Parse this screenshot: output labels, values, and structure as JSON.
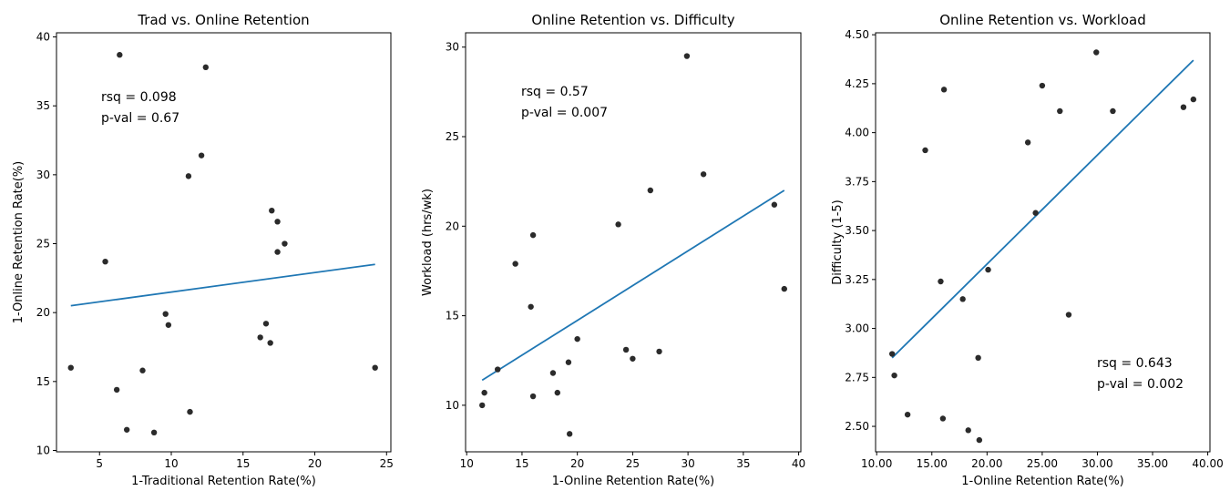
{
  "colors": {
    "points": "#2b2b2b",
    "fit_line": "#1f77b4",
    "background": "#ffffff"
  },
  "chart_data": [
    {
      "type": "scatter",
      "title": "Trad vs. Online Retention",
      "xlabel": "1-Traditional Retention Rate(%)",
      "ylabel": "1-Online Retention Rate(%)",
      "xlim": [
        2.0,
        25.3
      ],
      "ylim": [
        9.9,
        40.3
      ],
      "xticks": [
        5,
        10,
        15,
        20,
        25
      ],
      "yticks": [
        10,
        15,
        20,
        25,
        30,
        35,
        40
      ],
      "tick_format": "int",
      "points": [
        [
          3.0,
          16.0
        ],
        [
          5.4,
          23.7
        ],
        [
          6.2,
          14.4
        ],
        [
          6.4,
          38.7
        ],
        [
          6.9,
          11.5
        ],
        [
          8.0,
          15.8
        ],
        [
          8.8,
          11.3
        ],
        [
          9.6,
          19.9
        ],
        [
          9.8,
          19.1
        ],
        [
          11.2,
          29.9
        ],
        [
          11.3,
          12.8
        ],
        [
          12.1,
          31.4
        ],
        [
          12.4,
          37.8
        ],
        [
          16.2,
          18.2
        ],
        [
          16.6,
          19.2
        ],
        [
          16.9,
          17.8
        ],
        [
          17.0,
          27.4
        ],
        [
          17.4,
          26.6
        ],
        [
          17.4,
          24.4
        ],
        [
          17.9,
          25.0
        ],
        [
          24.2,
          16.0
        ]
      ],
      "fit": {
        "x": [
          3.0,
          24.2
        ],
        "y": [
          20.5,
          23.5
        ]
      },
      "annotation": {
        "lines": [
          "rsq = 0.098",
          "p-val = 0.67"
        ],
        "position": "upper-left"
      }
    },
    {
      "type": "scatter",
      "title": "Online Retention vs. Difficulty",
      "xlabel": "1-Online Retention Rate(%)",
      "ylabel": "Workload (hrs/wk)",
      "xlim": [
        9.9,
        40.2
      ],
      "ylim": [
        7.4,
        30.8
      ],
      "xticks": [
        10,
        15,
        20,
        25,
        30,
        35,
        40
      ],
      "yticks": [
        10,
        15,
        20,
        25,
        30
      ],
      "tick_format": "int",
      "points": [
        [
          11.4,
          10.0
        ],
        [
          11.6,
          10.7
        ],
        [
          12.8,
          12.0
        ],
        [
          14.4,
          17.9
        ],
        [
          15.8,
          15.5
        ],
        [
          16.0,
          19.5
        ],
        [
          16.0,
          10.5
        ],
        [
          17.8,
          11.8
        ],
        [
          18.2,
          10.7
        ],
        [
          19.2,
          12.4
        ],
        [
          19.3,
          8.4
        ],
        [
          20.0,
          13.7
        ],
        [
          23.7,
          20.1
        ],
        [
          24.4,
          13.1
        ],
        [
          25.0,
          12.6
        ],
        [
          26.6,
          22.0
        ],
        [
          27.4,
          13.0
        ],
        [
          29.9,
          29.5
        ],
        [
          31.4,
          22.9
        ],
        [
          37.8,
          21.2
        ],
        [
          38.7,
          16.5
        ]
      ],
      "fit": {
        "x": [
          11.4,
          38.7
        ],
        "y": [
          11.4,
          22.0
        ]
      },
      "annotation": {
        "lines": [
          "rsq = 0.57",
          "p-val = 0.007"
        ],
        "position": "upper-left"
      }
    },
    {
      "type": "scatter",
      "title": "Online Retention vs. Workload",
      "xlabel": "1-Online Retention Rate(%)",
      "ylabel": "Difficulty (1-5)",
      "xlim": [
        9.9,
        40.2
      ],
      "ylim": [
        2.37,
        4.51
      ],
      "xticks": [
        10,
        15,
        20,
        25,
        30,
        35,
        40
      ],
      "yticks": [
        2.5,
        2.75,
        3.0,
        3.25,
        3.5,
        3.75,
        4.0,
        4.25,
        4.5
      ],
      "tick_format": "fixed2",
      "points": [
        [
          11.4,
          2.87
        ],
        [
          11.6,
          2.76
        ],
        [
          12.8,
          2.56
        ],
        [
          14.4,
          3.91
        ],
        [
          15.8,
          3.24
        ],
        [
          16.0,
          2.54
        ],
        [
          16.1,
          4.22
        ],
        [
          17.8,
          3.15
        ],
        [
          18.3,
          2.48
        ],
        [
          19.2,
          2.85
        ],
        [
          19.3,
          2.43
        ],
        [
          20.1,
          3.3
        ],
        [
          23.7,
          3.95
        ],
        [
          24.4,
          3.59
        ],
        [
          25.0,
          4.24
        ],
        [
          26.6,
          4.11
        ],
        [
          27.4,
          3.07
        ],
        [
          29.9,
          4.41
        ],
        [
          31.4,
          4.11
        ],
        [
          37.8,
          4.13
        ],
        [
          38.7,
          4.17
        ]
      ],
      "fit": {
        "x": [
          11.4,
          38.7
        ],
        "y": [
          2.85,
          4.37
        ]
      },
      "annotation": {
        "lines": [
          "rsq = 0.643",
          "p-val = 0.002"
        ],
        "position": "lower-right"
      }
    }
  ]
}
